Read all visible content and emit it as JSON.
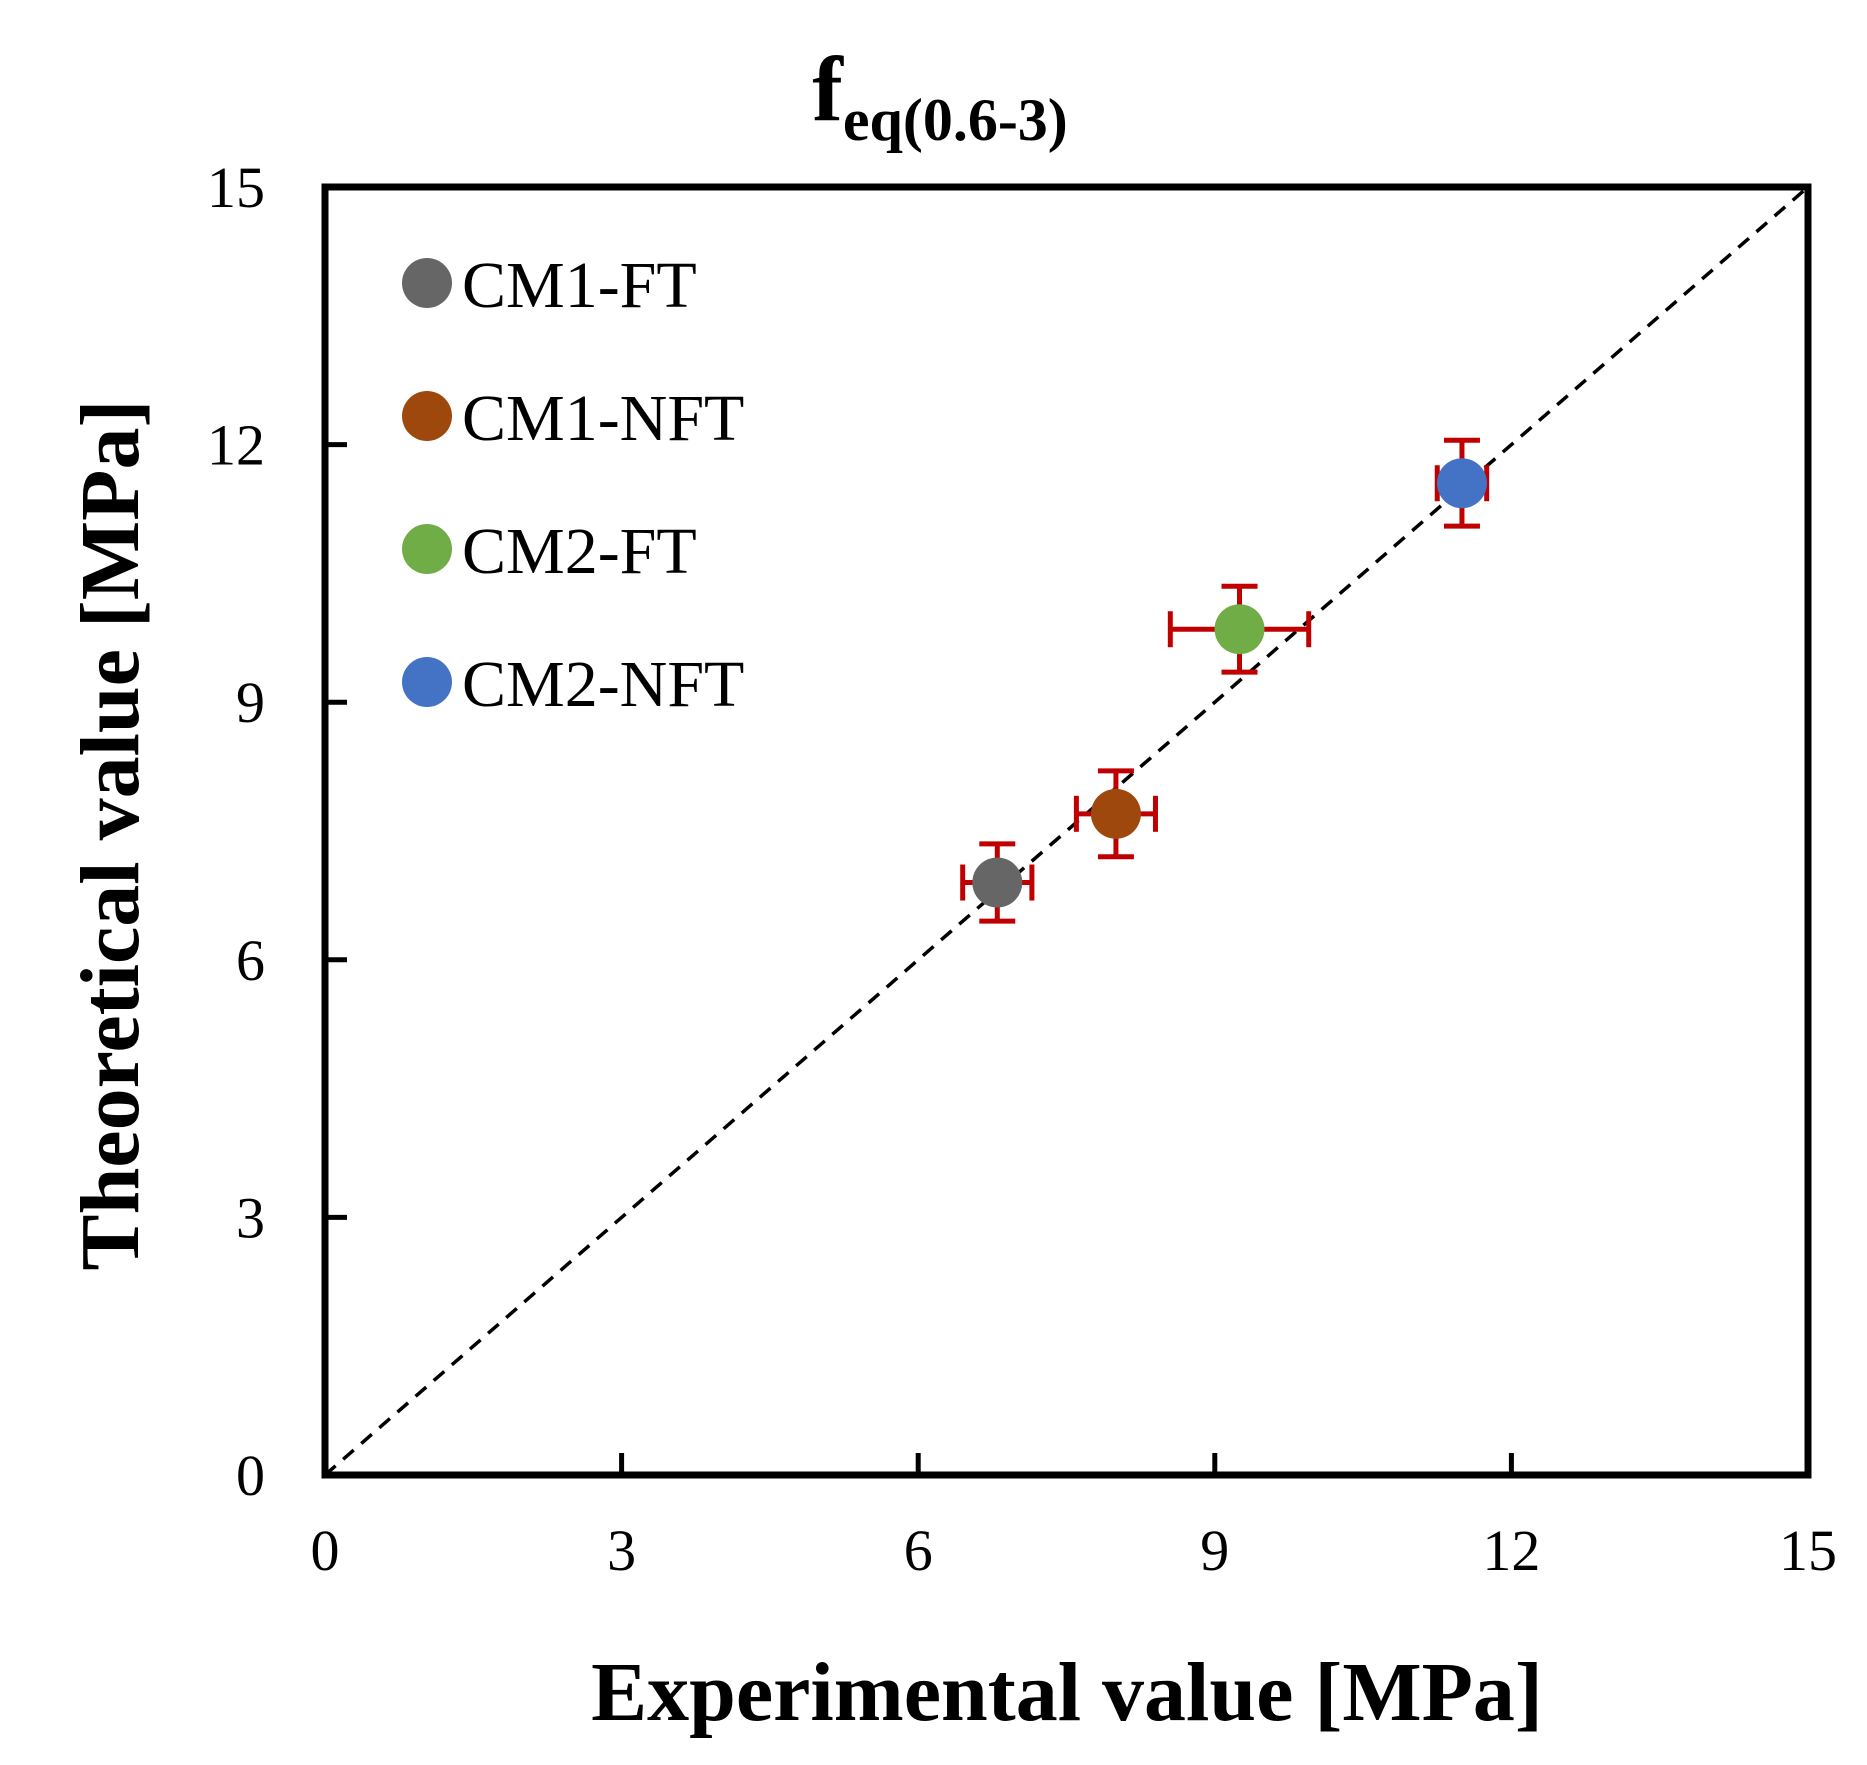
{
  "chart_data": {
    "type": "scatter",
    "title": "f",
    "title_subscript": "eq(0.6-3)",
    "xlabel": "Experimental value [MPa]",
    "ylabel": "Theoretical value [MPa]",
    "xlim": [
      0,
      15
    ],
    "ylim": [
      0,
      15
    ],
    "xticks": [
      "0",
      "3",
      "6",
      "9",
      "12",
      "15"
    ],
    "yticks": [
      "0",
      "3",
      "6",
      "9",
      "12",
      "15"
    ],
    "grid": false,
    "legend_position": "top-left",
    "reference_line": {
      "name": "y = x",
      "style": "dashed",
      "color": "#000000"
    },
    "error_bar_color": "#c00000",
    "series": [
      {
        "name": "CM1-FT",
        "color": "#666666",
        "x": 6.8,
        "y": 6.9,
        "x_err": 0.35,
        "y_err": 0.45
      },
      {
        "name": "CM1-NFT",
        "color": "#9e480e",
        "x": 8.0,
        "y": 7.7,
        "x_err": 0.4,
        "y_err": 0.5
      },
      {
        "name": "CM2-FT",
        "color": "#70ad47",
        "x": 9.25,
        "y": 9.85,
        "x_err": 0.7,
        "y_err": 0.5
      },
      {
        "name": "CM2-NFT",
        "color": "#4472c4",
        "x": 11.5,
        "y": 11.55,
        "x_err": 0.25,
        "y_err": 0.5
      }
    ]
  }
}
